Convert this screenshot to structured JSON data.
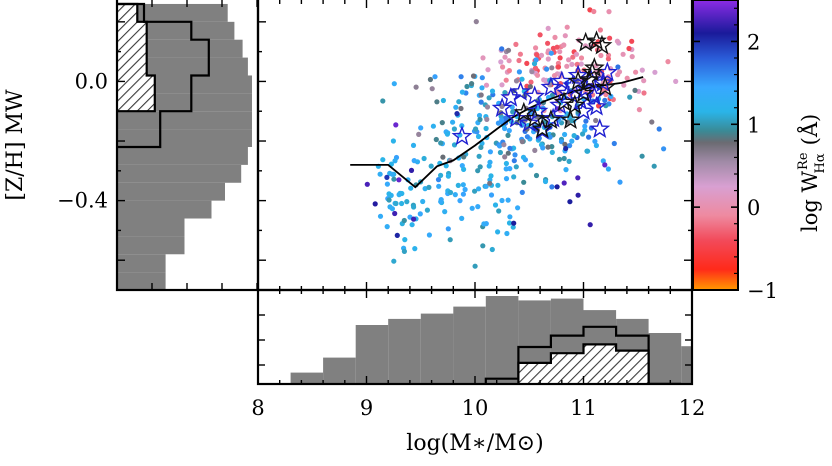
{
  "chart_data": [
    {
      "panel": "main",
      "type": "scatter",
      "xlabel": "log(M∗/M⊙)",
      "ylabel": "[Z/H] MW",
      "xlim": [
        8,
        12
      ],
      "ylim": [
        -0.7,
        0.28
      ],
      "x_ticks": [
        "8",
        "9",
        "10",
        "11",
        "12"
      ],
      "y_ticks": [
        "0.0",
        "−0.4"
      ],
      "y_tick_values": [
        0.0,
        -0.4
      ],
      "scatter_counts": {
        "red_pink": 140,
        "blue_cyan": 190,
        "lowmass_cyan": 120,
        "gray": 50,
        "purple": 20
      },
      "median_line": [
        [
          8.85,
          -0.28
        ],
        [
          9.0,
          -0.28
        ],
        [
          9.2,
          -0.28
        ],
        [
          9.45,
          -0.355
        ],
        [
          9.65,
          -0.285
        ],
        [
          9.8,
          -0.265
        ],
        [
          10.0,
          -0.215
        ],
        [
          10.2,
          -0.16
        ],
        [
          10.35,
          -0.12
        ],
        [
          10.5,
          -0.09
        ],
        [
          10.65,
          -0.065
        ],
        [
          10.8,
          -0.045
        ],
        [
          10.9,
          -0.035
        ],
        [
          11.0,
          -0.025
        ],
        [
          11.15,
          -0.015
        ],
        [
          11.35,
          -0.005
        ],
        [
          11.55,
          0.015
        ]
      ],
      "stars_blue": [
        [
          9.88,
          -0.185
        ],
        [
          10.25,
          -0.09
        ],
        [
          10.33,
          -0.055
        ],
        [
          10.38,
          -0.125
        ],
        [
          10.42,
          -0.035
        ],
        [
          10.5,
          -0.14
        ],
        [
          10.58,
          -0.1
        ],
        [
          10.62,
          -0.165
        ],
        [
          10.7,
          -0.02
        ],
        [
          10.78,
          -0.08
        ],
        [
          10.8,
          0.0
        ],
        [
          10.85,
          -0.04
        ],
        [
          10.9,
          -0.015
        ],
        [
          10.95,
          0.02
        ],
        [
          10.97,
          -0.065
        ],
        [
          11.02,
          -0.025
        ],
        [
          11.07,
          0.005
        ],
        [
          11.1,
          -0.05
        ],
        [
          11.12,
          -0.085
        ],
        [
          11.15,
          -0.16
        ],
        [
          11.18,
          -0.005
        ],
        [
          11.22,
          0.03
        ],
        [
          10.72,
          -0.125
        ],
        [
          10.55,
          -0.05
        ],
        [
          11.0,
          -0.1
        ]
      ],
      "stars_black": [
        [
          10.45,
          -0.105
        ],
        [
          10.55,
          -0.125
        ],
        [
          10.62,
          -0.16
        ],
        [
          10.7,
          -0.13
        ],
        [
          10.82,
          -0.07
        ],
        [
          10.88,
          -0.13
        ],
        [
          10.92,
          -0.08
        ],
        [
          11.0,
          -0.04
        ],
        [
          11.05,
          0.005
        ],
        [
          11.08,
          0.03
        ],
        [
          11.02,
          0.13
        ],
        [
          11.12,
          0.135
        ],
        [
          11.17,
          0.12
        ],
        [
          11.1,
          0.045
        ],
        [
          11.2,
          -0.02
        ],
        [
          10.95,
          0.0
        ]
      ]
    },
    {
      "panel": "colorbar",
      "type": "colorbar",
      "label": "log W",
      "label_sup": "Re",
      "label_sub": "Hα",
      "label_unit": "(Å)",
      "range": [
        -1,
        2.5
      ],
      "ticks": [
        "2",
        "1",
        "0",
        "−1"
      ],
      "tick_values": [
        2,
        1,
        0,
        -1
      ],
      "stops": [
        [
          -1.0,
          "#ff9a00"
        ],
        [
          -0.75,
          "#ff2a1a"
        ],
        [
          -0.4,
          "#f24a5a"
        ],
        [
          -0.1,
          "#ee8aa0"
        ],
        [
          0.25,
          "#d8a0d2"
        ],
        [
          0.55,
          "#a08aa6"
        ],
        [
          0.78,
          "#6b6b72"
        ],
        [
          0.92,
          "#3a8a96"
        ],
        [
          1.15,
          "#2ab4e8"
        ],
        [
          1.45,
          "#38a8ff"
        ],
        [
          1.8,
          "#2a5cd8"
        ],
        [
          2.1,
          "#1a1a9a"
        ],
        [
          2.5,
          "#8c2ce6"
        ]
      ]
    },
    {
      "panel": "left_histogram",
      "type": "histogram",
      "orientation": "horizontal",
      "bins": [
        -0.7,
        -0.64,
        -0.58,
        -0.52,
        -0.46,
        -0.4,
        -0.34,
        -0.28,
        -0.22,
        -0.16,
        -0.1,
        -0.04,
        0.02,
        0.08,
        0.14,
        0.2,
        0.26
      ],
      "counts_all": [
        0.36,
        0.36,
        0.5,
        0.5,
        0.7,
        0.8,
        0.92,
        0.97,
        1.0,
        1.0,
        1.0,
        1.0,
        0.97,
        0.93,
        0.87,
        0.82,
        0.0
      ],
      "counts_sample1": [
        0,
        0,
        0,
        0,
        0,
        0,
        0,
        0,
        0.32,
        0.32,
        0.55,
        0.55,
        0.68,
        0.68,
        0.55,
        0.2,
        0
      ],
      "counts_sample2": [
        0,
        0,
        0,
        0,
        0,
        0,
        0,
        0,
        0,
        0,
        0.28,
        0.28,
        0.22,
        0.22,
        0.22,
        0.15,
        0
      ]
    },
    {
      "panel": "bottom_histogram",
      "type": "histogram",
      "orientation": "vertical",
      "bins": [
        8,
        8.3,
        8.6,
        8.9,
        9.2,
        9.5,
        9.8,
        10.1,
        10.4,
        10.7,
        11.0,
        11.3,
        11.6,
        11.9,
        12.0
      ],
      "counts_all": [
        0,
        0.13,
        0.3,
        0.67,
        0.74,
        0.8,
        0.88,
        1.0,
        0.95,
        0.97,
        0.84,
        0.74,
        0.58,
        0.43
      ],
      "counts_sample1": [
        0,
        0,
        0,
        0,
        0,
        0,
        0,
        0.06,
        0.42,
        0.55,
        0.65,
        0.55,
        0,
        0
      ],
      "counts_sample2": [
        0,
        0,
        0,
        0,
        0,
        0,
        0,
        0,
        0.24,
        0.35,
        0.45,
        0.38,
        0,
        0
      ]
    }
  ]
}
